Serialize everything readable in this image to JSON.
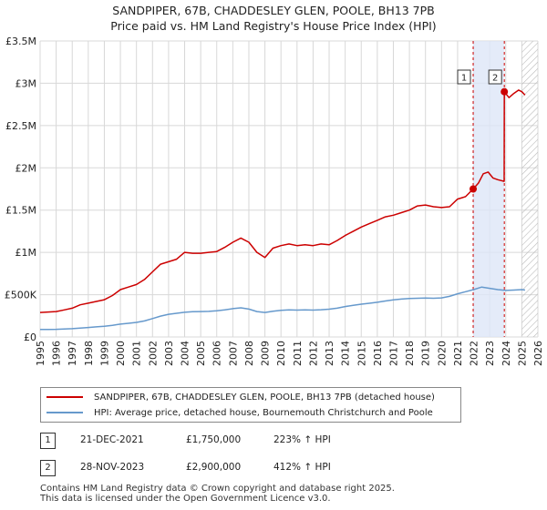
{
  "title_line1": "SANDPIPER, 67B, CHADDESLEY GLEN, POOLE, BH13 7PB",
  "title_line2": "Price paid vs. HM Land Registry's House Price Index (HPI)",
  "chart_data": {
    "type": "line",
    "title": "SANDPIPER, 67B, CHADDESLEY GLEN, POOLE, BH13 7PB — Price paid vs. HM Land Registry's House Price Index (HPI)",
    "xlim": [
      1995,
      2026
    ],
    "ylim": [
      0,
      3500000
    ],
    "x_ticks": [
      1995,
      1996,
      1997,
      1998,
      1999,
      2000,
      2001,
      2002,
      2003,
      2004,
      2005,
      2006,
      2007,
      2008,
      2009,
      2010,
      2011,
      2012,
      2013,
      2014,
      2015,
      2016,
      2017,
      2018,
      2019,
      2020,
      2021,
      2022,
      2023,
      2024,
      2025,
      2026
    ],
    "y_ticks": [
      {
        "value": 0,
        "label": "£0"
      },
      {
        "value": 500000,
        "label": "£500K"
      },
      {
        "value": 1000000,
        "label": "£1M"
      },
      {
        "value": 1500000,
        "label": "£1.5M"
      },
      {
        "value": 2000000,
        "label": "£2M"
      },
      {
        "value": 2500000,
        "label": "£2.5M"
      },
      {
        "value": 3000000,
        "label": "£3M"
      },
      {
        "value": 3500000,
        "label": "£3.5M"
      }
    ],
    "grid": true,
    "shaded_region": {
      "x_start": 2021.97,
      "x_end": 2023.91,
      "color": "#dde6f7"
    },
    "hatched_region": {
      "x_start": 2025.0,
      "x_end": 2026.0
    },
    "series": [
      {
        "name": "SANDPIPER, 67B, CHADDESLEY GLEN, POOLE, BH13 7PB (detached house)",
        "color": "#cc0000",
        "x": [
          1995,
          1995.5,
          1996,
          1996.5,
          1997,
          1997.5,
          1998,
          1998.5,
          1999,
          1999.5,
          2000,
          2000.5,
          2001,
          2001.5,
          2002,
          2002.5,
          2003,
          2003.5,
          2004,
          2004.5,
          2005,
          2005.5,
          2006,
          2006.5,
          2007,
          2007.5,
          2008,
          2008.5,
          2009,
          2009.5,
          2010,
          2010.5,
          2011,
          2011.5,
          2012,
          2012.5,
          2013,
          2013.5,
          2014,
          2014.5,
          2015,
          2015.5,
          2016,
          2016.5,
          2017,
          2017.5,
          2018,
          2018.5,
          2019,
          2019.5,
          2020,
          2020.5,
          2021,
          2021.5,
          2021.97,
          2022.3,
          2022.6,
          2022.9,
          2023.2,
          2023.5,
          2023.9,
          2023.91,
          2024.2,
          2024.5,
          2024.8,
          2025.0,
          2025.2
        ],
        "values": [
          290000,
          295000,
          300000,
          320000,
          340000,
          380000,
          400000,
          420000,
          440000,
          490000,
          560000,
          590000,
          620000,
          680000,
          770000,
          860000,
          890000,
          920000,
          1000000,
          990000,
          990000,
          1000000,
          1010000,
          1060000,
          1120000,
          1170000,
          1120000,
          1000000,
          940000,
          1050000,
          1080000,
          1100000,
          1080000,
          1090000,
          1080000,
          1100000,
          1090000,
          1140000,
          1200000,
          1250000,
          1300000,
          1340000,
          1380000,
          1420000,
          1440000,
          1470000,
          1500000,
          1550000,
          1560000,
          1540000,
          1530000,
          1540000,
          1630000,
          1660000,
          1750000,
          1820000,
          1930000,
          1950000,
          1880000,
          1860000,
          1840000,
          2900000,
          2830000,
          2880000,
          2920000,
          2900000,
          2860000
        ]
      },
      {
        "name": "HPI: Average price, detached house, Bournemouth Christchurch and Poole",
        "color": "#6699cc",
        "x": [
          1995,
          1995.5,
          1996,
          1996.5,
          1997,
          1997.5,
          1998,
          1998.5,
          1999,
          1999.5,
          2000,
          2000.5,
          2001,
          2001.5,
          2002,
          2002.5,
          2003,
          2003.5,
          2004,
          2004.5,
          2005,
          2005.5,
          2006,
          2006.5,
          2007,
          2007.5,
          2008,
          2008.5,
          2009,
          2009.5,
          2010,
          2010.5,
          2011,
          2011.5,
          2012,
          2012.5,
          2013,
          2013.5,
          2014,
          2014.5,
          2015,
          2015.5,
          2016,
          2016.5,
          2017,
          2017.5,
          2018,
          2018.5,
          2019,
          2019.5,
          2020,
          2020.5,
          2021,
          2021.5,
          2022,
          2022.5,
          2023,
          2023.5,
          2024,
          2024.5,
          2025,
          2025.2
        ],
        "values": [
          88000,
          89000,
          91000,
          94000,
          98000,
          104000,
          112000,
          119000,
          127000,
          138000,
          152000,
          162000,
          172000,
          190000,
          218000,
          247000,
          268000,
          280000,
          292000,
          298000,
          300000,
          303000,
          310000,
          320000,
          335000,
          345000,
          330000,
          300000,
          290000,
          305000,
          315000,
          320000,
          318000,
          320000,
          318000,
          322000,
          328000,
          340000,
          360000,
          375000,
          388000,
          398000,
          410000,
          425000,
          438000,
          448000,
          455000,
          458000,
          460000,
          458000,
          462000,
          480000,
          510000,
          535000,
          560000,
          590000,
          575000,
          560000,
          550000,
          555000,
          560000,
          555000
        ]
      }
    ],
    "annotations": [
      {
        "label": "1",
        "x": 2021.97,
        "y": 1750000
      },
      {
        "label": "2",
        "x": 2023.91,
        "y": 2900000
      }
    ]
  },
  "legend": {
    "items": [
      {
        "label": "SANDPIPER, 67B, CHADDESLEY GLEN, POOLE, BH13 7PB (detached house)",
        "color": "#cc0000"
      },
      {
        "label": "HPI: Average price, detached house, Bournemouth Christchurch and Poole",
        "color": "#6699cc"
      }
    ]
  },
  "sales": [
    {
      "num": "1",
      "date": "21-DEC-2021",
      "price": "£1,750,000",
      "hpi": "223% ↑ HPI"
    },
    {
      "num": "2",
      "date": "28-NOV-2023",
      "price": "£2,900,000",
      "hpi": "412% ↑ HPI"
    }
  ],
  "footer": {
    "line1": "Contains HM Land Registry data © Crown copyright and database right 2025.",
    "line2": "This data is licensed under the Open Government Licence v3.0."
  }
}
